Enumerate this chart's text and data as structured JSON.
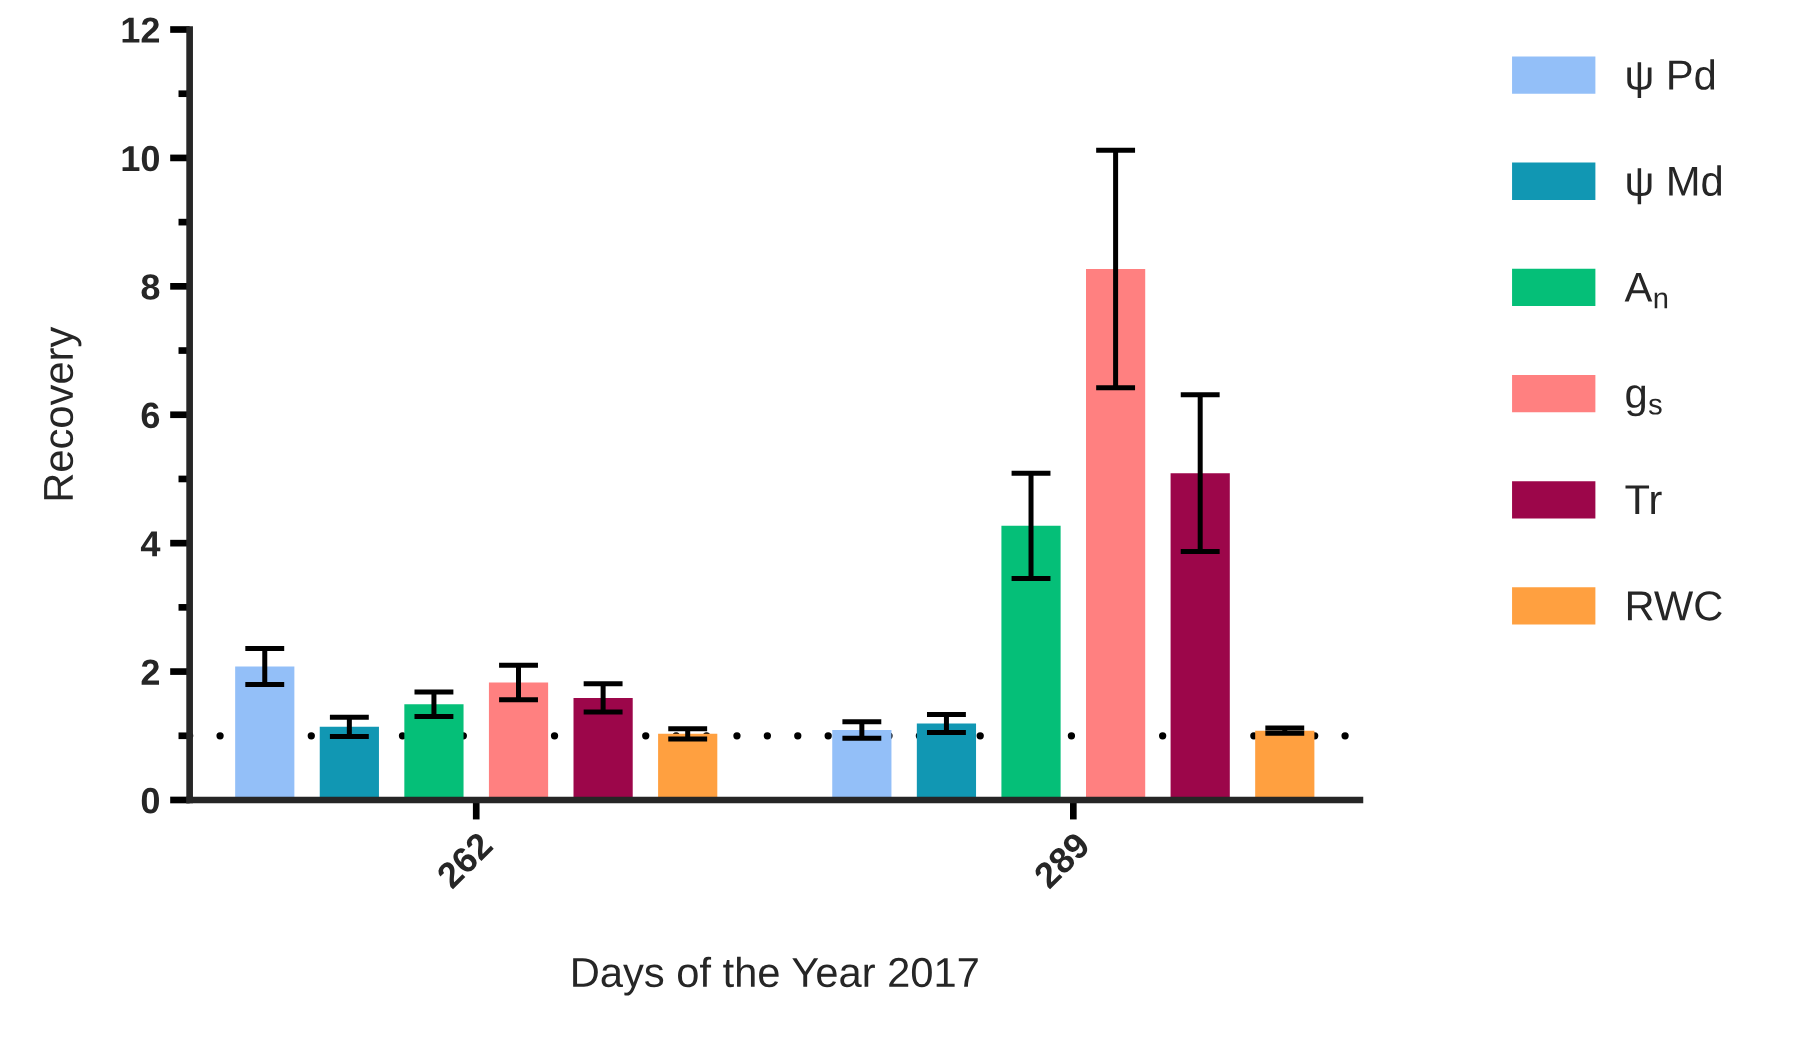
{
  "chart_data": {
    "type": "bar",
    "xlabel": "Days of the Year 2017",
    "ylabel": "Recovery",
    "categories": [
      "262",
      "289"
    ],
    "series": [
      {
        "name": "ψ Pd",
        "color": "#93bff8",
        "values": [
          2.08,
          1.09
        ],
        "errors": [
          0.28,
          0.13
        ]
      },
      {
        "name": "ψ Md",
        "color": "#1197b3",
        "values": [
          1.14,
          1.19
        ],
        "errors": [
          0.15,
          0.14
        ]
      },
      {
        "name": "A$_{n}$",
        "color": "#05bf78",
        "values": [
          1.49,
          4.27
        ],
        "errors": [
          0.19,
          0.82
        ]
      },
      {
        "name": "g$_{s}$",
        "color": "#ff8080",
        "values": [
          1.83,
          8.27
        ],
        "errors": [
          0.27,
          1.85
        ]
      },
      {
        "name": "Tr",
        "color": "#9c064a",
        "values": [
          1.59,
          5.09
        ],
        "errors": [
          0.22,
          1.22
        ]
      },
      {
        "name": "RWC",
        "color": "#ffa040",
        "values": [
          1.03,
          1.08
        ],
        "errors": [
          0.08,
          0.04
        ]
      }
    ],
    "ylim": [
      0,
      12
    ],
    "yticks": [
      0,
      {
        "value": 1,
        "label": null
      },
      2,
      {
        "value": 3,
        "label": null
      },
      4,
      {
        "value": 5,
        "label": null
      },
      6,
      {
        "value": 7,
        "label": null
      },
      8,
      {
        "value": 9,
        "label": null
      },
      10,
      {
        "value": 11,
        "label": null
      },
      12
    ],
    "ref_lines": [
      {
        "axis": "y",
        "value": 1,
        "line_style": "dotted",
        "color": "#000000"
      }
    ],
    "legend": "right"
  }
}
